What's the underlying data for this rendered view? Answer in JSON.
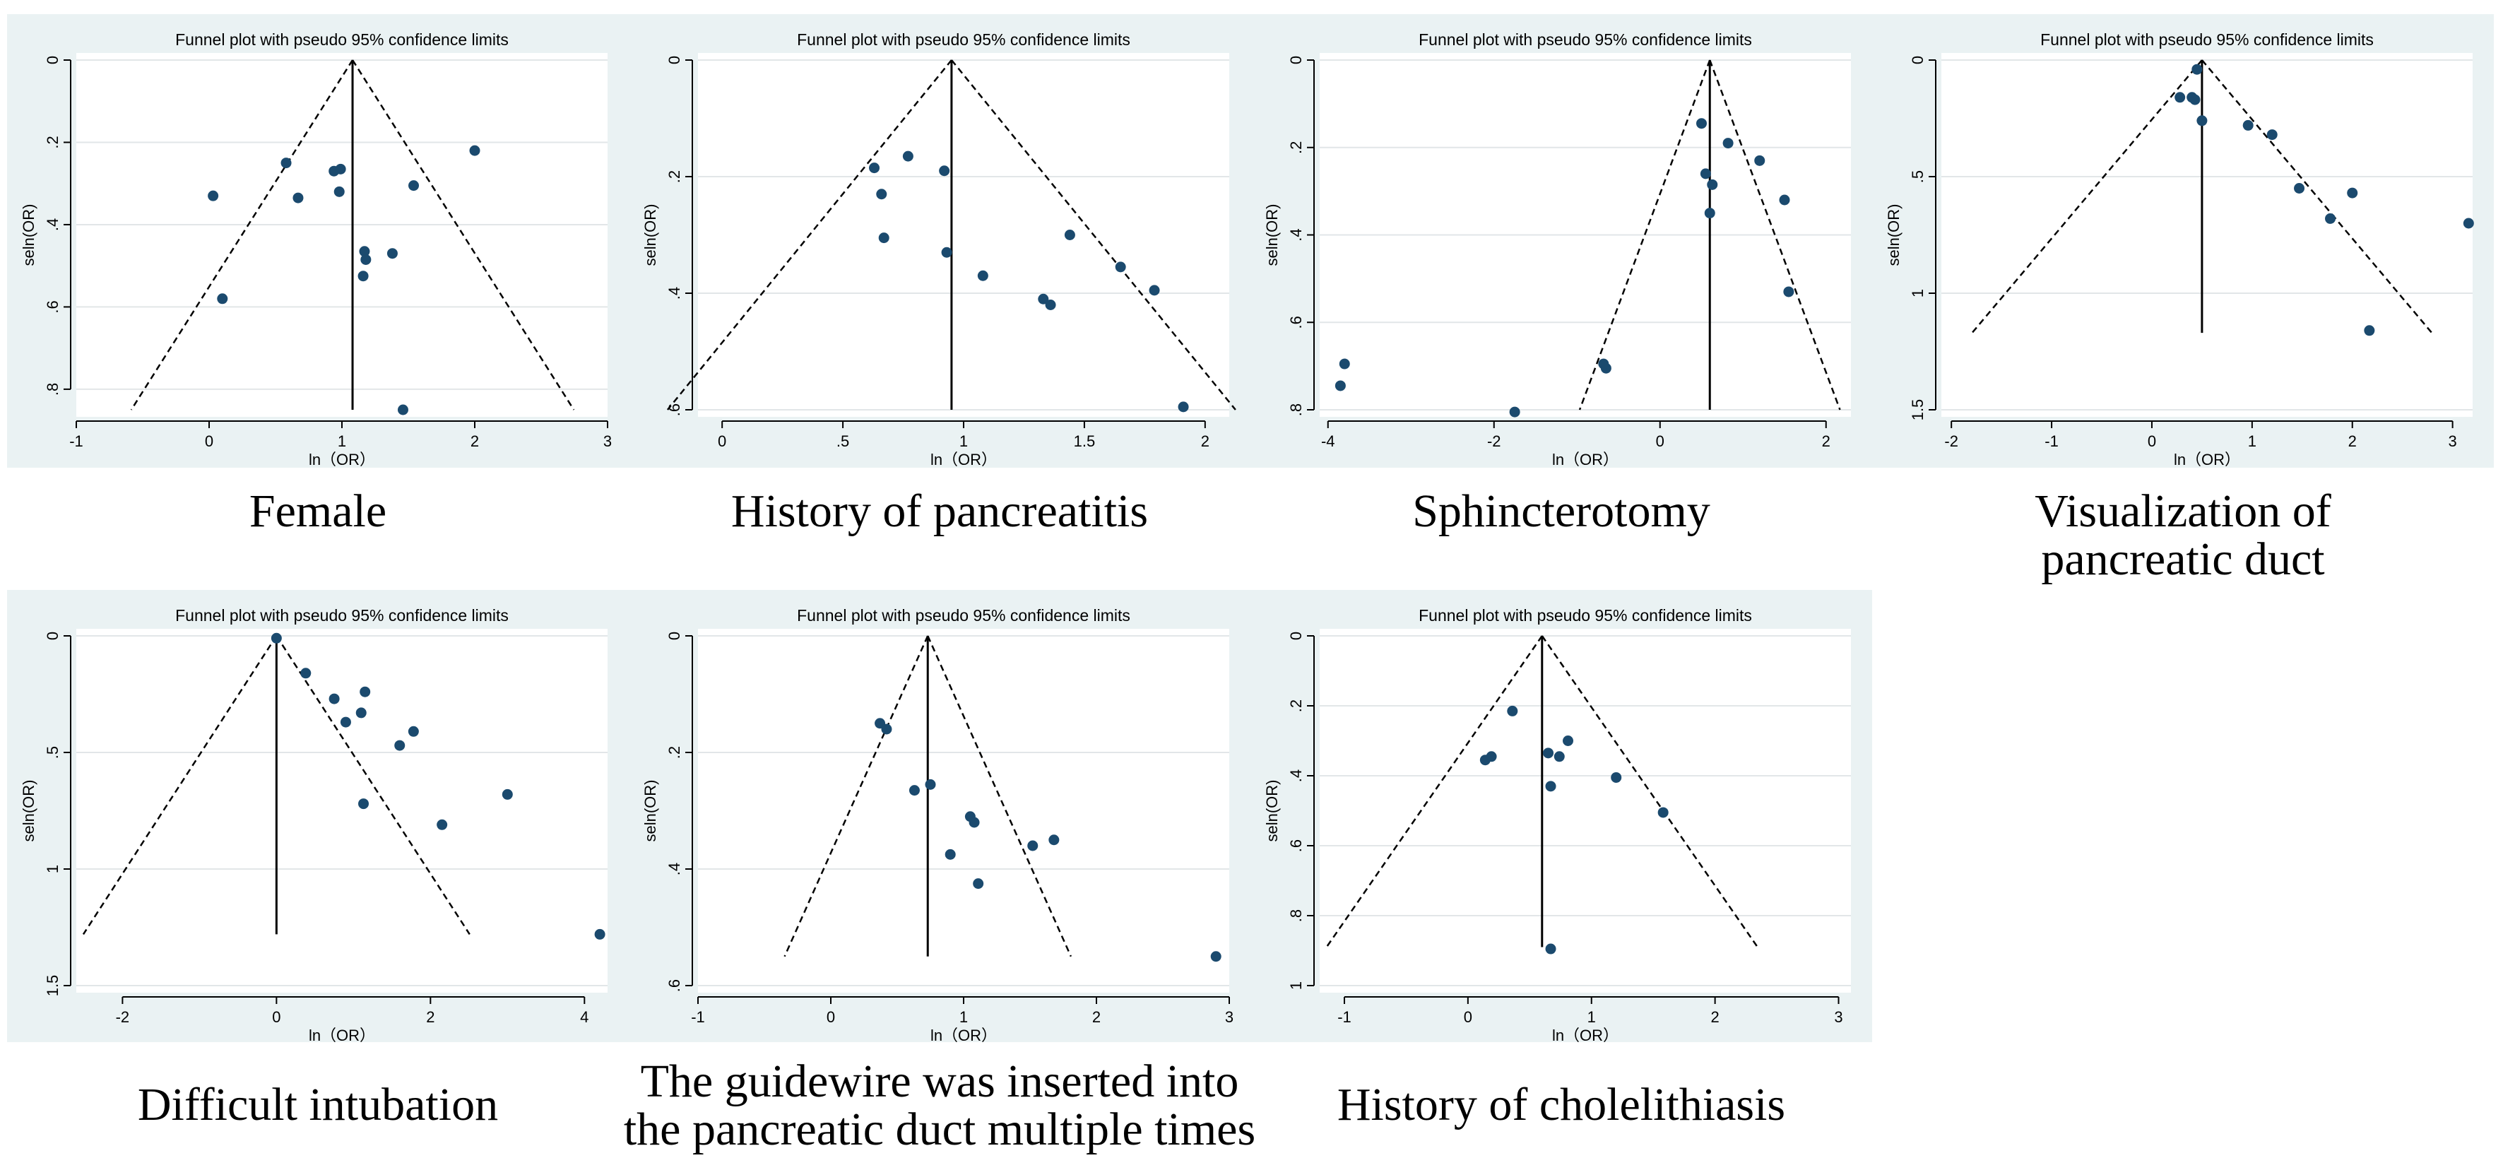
{
  "chart_data": [
    {
      "type": "scatter",
      "title": "Funnel plot with pseudo 95% confidence limits",
      "xlabel": "ln（OR）",
      "ylabel": "seln(OR)",
      "caption": [
        "Female"
      ],
      "xlim": [
        -1,
        3
      ],
      "ylim": [
        0,
        0.85
      ],
      "y_reversed": true,
      "xticks": [
        -1,
        0,
        1,
        2,
        3
      ],
      "xtick_labels": [
        "-1",
        "0",
        "1",
        "2",
        "3"
      ],
      "yticks": [
        0,
        0.2,
        0.4,
        0.6,
        0.8
      ],
      "ytick_labels": [
        "0",
        ".2",
        ".4",
        ".6",
        ".8"
      ],
      "pooled": 1.08,
      "funnel_ymax": 0.85,
      "grid": true,
      "points": [
        {
          "x": 0.03,
          "y": 0.33
        },
        {
          "x": 0.1,
          "y": 0.58
        },
        {
          "x": 0.58,
          "y": 0.25
        },
        {
          "x": 0.67,
          "y": 0.335
        },
        {
          "x": 0.94,
          "y": 0.27
        },
        {
          "x": 0.99,
          "y": 0.265
        },
        {
          "x": 0.98,
          "y": 0.32
        },
        {
          "x": 1.17,
          "y": 0.465
        },
        {
          "x": 1.18,
          "y": 0.485
        },
        {
          "x": 1.16,
          "y": 0.525
        },
        {
          "x": 1.38,
          "y": 0.47
        },
        {
          "x": 1.54,
          "y": 0.305
        },
        {
          "x": 1.46,
          "y": 0.85
        },
        {
          "x": 2.0,
          "y": 0.22
        }
      ]
    },
    {
      "type": "scatter",
      "title": "Funnel plot with pseudo 95% confidence limits",
      "xlabel": "ln（OR）",
      "ylabel": "seln(OR)",
      "caption": [
        "History of pancreatitis"
      ],
      "xlim": [
        -0.1,
        2.1
      ],
      "ylim": [
        0,
        0.6
      ],
      "y_reversed": true,
      "xticks": [
        0,
        0.5,
        1,
        1.5,
        2
      ],
      "xtick_labels": [
        "0",
        ".5",
        "1",
        "1.5",
        "2"
      ],
      "yticks": [
        0,
        0.2,
        0.4,
        0.6
      ],
      "ytick_labels": [
        "0",
        ".2",
        ".4",
        ".6"
      ],
      "pooled": 0.95,
      "funnel_ymax": 0.6,
      "grid": true,
      "points": [
        {
          "x": 0.63,
          "y": 0.185
        },
        {
          "x": 0.66,
          "y": 0.23
        },
        {
          "x": 0.67,
          "y": 0.305
        },
        {
          "x": 0.77,
          "y": 0.165
        },
        {
          "x": 0.92,
          "y": 0.19
        },
        {
          "x": 0.93,
          "y": 0.33
        },
        {
          "x": 1.08,
          "y": 0.37
        },
        {
          "x": 1.33,
          "y": 0.41
        },
        {
          "x": 1.36,
          "y": 0.42
        },
        {
          "x": 1.44,
          "y": 0.3
        },
        {
          "x": 1.65,
          "y": 0.355
        },
        {
          "x": 1.79,
          "y": 0.395
        },
        {
          "x": 1.91,
          "y": 0.595
        }
      ]
    },
    {
      "type": "scatter",
      "title": "Funnel plot with pseudo 95% confidence limits",
      "xlabel": "ln（OR）",
      "ylabel": "seln(OR)",
      "caption": [
        "Sphincterotomy"
      ],
      "xlim": [
        -4.1,
        2.3
      ],
      "ylim": [
        0,
        0.8
      ],
      "y_reversed": true,
      "xticks": [
        -4,
        -2,
        0,
        2
      ],
      "xtick_labels": [
        "-4",
        "-2",
        "0",
        "2"
      ],
      "yticks": [
        0,
        0.2,
        0.4,
        0.6,
        0.8
      ],
      "ytick_labels": [
        "0",
        ".2",
        ".4",
        ".6",
        ".8"
      ],
      "pooled": 0.6,
      "funnel_ymax": 0.8,
      "grid": true,
      "points": [
        {
          "x": -3.85,
          "y": 0.745
        },
        {
          "x": -3.8,
          "y": 0.695
        },
        {
          "x": -1.75,
          "y": 0.805
        },
        {
          "x": -0.65,
          "y": 0.705
        },
        {
          "x": -0.68,
          "y": 0.695
        },
        {
          "x": 0.5,
          "y": 0.145
        },
        {
          "x": 0.55,
          "y": 0.26
        },
        {
          "x": 0.63,
          "y": 0.285
        },
        {
          "x": 0.6,
          "y": 0.35
        },
        {
          "x": 0.82,
          "y": 0.19
        },
        {
          "x": 1.2,
          "y": 0.23
        },
        {
          "x": 1.5,
          "y": 0.32
        },
        {
          "x": 1.55,
          "y": 0.53
        }
      ]
    },
    {
      "type": "scatter",
      "title": "Funnel plot with pseudo 95% confidence limits",
      "xlabel": "ln（OR）",
      "ylabel": "seln(OR)",
      "caption": [
        "Visualization of",
        "pancreatic duct"
      ],
      "xlim": [
        -2.1,
        3.2
      ],
      "ylim": [
        0,
        1.5
      ],
      "y_reversed": true,
      "xticks": [
        -2,
        -1,
        0,
        1,
        2,
        3
      ],
      "xtick_labels": [
        "-2",
        "-1",
        "0",
        "1",
        "2",
        "3"
      ],
      "yticks": [
        0,
        0.5,
        1,
        1.5
      ],
      "ytick_labels": [
        "0",
        ".5",
        "1",
        "1.5"
      ],
      "pooled": 0.5,
      "funnel_ymax": 1.17,
      "grid": true,
      "points": [
        {
          "x": 0.28,
          "y": 0.16
        },
        {
          "x": 0.4,
          "y": 0.16
        },
        {
          "x": 0.43,
          "y": 0.17
        },
        {
          "x": 0.45,
          "y": 0.04
        },
        {
          "x": 0.5,
          "y": 0.26
        },
        {
          "x": 0.96,
          "y": 0.28
        },
        {
          "x": 1.2,
          "y": 0.32
        },
        {
          "x": 1.47,
          "y": 0.55
        },
        {
          "x": 1.78,
          "y": 0.68
        },
        {
          "x": 2.0,
          "y": 0.57
        },
        {
          "x": 2.17,
          "y": 1.16
        },
        {
          "x": 3.16,
          "y": 0.7
        }
      ]
    },
    {
      "type": "scatter",
      "title": "Funnel plot with pseudo 95% confidence limits",
      "xlabel": "ln（OR）",
      "ylabel": "seln(OR)",
      "caption": [
        "Difficult intubation"
      ],
      "xlim": [
        -2.6,
        4.3
      ],
      "ylim": [
        0,
        1.5
      ],
      "y_reversed": true,
      "xticks": [
        -2,
        0,
        2,
        4
      ],
      "xtick_labels": [
        "-2",
        "0",
        "2",
        "4"
      ],
      "yticks": [
        0,
        0.5,
        1,
        1.5
      ],
      "ytick_labels": [
        "0",
        ".5",
        "1",
        "1.5"
      ],
      "pooled": 0.0,
      "funnel_ymax": 1.28,
      "grid": true,
      "points": [
        {
          "x": 0.0,
          "y": 0.01
        },
        {
          "x": 0.38,
          "y": 0.16
        },
        {
          "x": 0.75,
          "y": 0.27
        },
        {
          "x": 0.9,
          "y": 0.37
        },
        {
          "x": 1.1,
          "y": 0.33
        },
        {
          "x": 1.15,
          "y": 0.24
        },
        {
          "x": 1.13,
          "y": 0.72
        },
        {
          "x": 1.6,
          "y": 0.47
        },
        {
          "x": 1.78,
          "y": 0.41
        },
        {
          "x": 2.15,
          "y": 0.81
        },
        {
          "x": 3.0,
          "y": 0.68
        },
        {
          "x": 4.2,
          "y": 1.28
        }
      ]
    },
    {
      "type": "scatter",
      "title": "Funnel plot with pseudo 95% confidence limits",
      "xlabel": "ln（OR）",
      "ylabel": "seln(OR)",
      "caption": [
        "The guidewire was inserted into",
        "the pancreatic duct multiple times"
      ],
      "xlim": [
        -1,
        3
      ],
      "ylim": [
        0,
        0.6
      ],
      "y_reversed": true,
      "xticks": [
        -1,
        0,
        1,
        2,
        3
      ],
      "xtick_labels": [
        "-1",
        "0",
        "1",
        "2",
        "3"
      ],
      "yticks": [
        0,
        0.2,
        0.4,
        0.6
      ],
      "ytick_labels": [
        "0",
        ".2",
        ".4",
        ".6"
      ],
      "pooled": 0.73,
      "funnel_ymax": 0.55,
      "grid": true,
      "points": [
        {
          "x": 0.37,
          "y": 0.15
        },
        {
          "x": 0.42,
          "y": 0.16
        },
        {
          "x": 0.63,
          "y": 0.265
        },
        {
          "x": 0.75,
          "y": 0.255
        },
        {
          "x": 0.9,
          "y": 0.375
        },
        {
          "x": 1.05,
          "y": 0.31
        },
        {
          "x": 1.08,
          "y": 0.32
        },
        {
          "x": 1.11,
          "y": 0.425
        },
        {
          "x": 1.52,
          "y": 0.36
        },
        {
          "x": 1.68,
          "y": 0.35
        },
        {
          "x": 2.9,
          "y": 0.55
        }
      ]
    },
    {
      "type": "scatter",
      "title": "Funnel plot with pseudo 95% confidence limits",
      "xlabel": "ln（OR）",
      "ylabel": "seln(OR)",
      "caption": [
        "History of cholelithiasis"
      ],
      "xlim": [
        -1.2,
        3.1
      ],
      "ylim": [
        0,
        1.0
      ],
      "y_reversed": true,
      "xticks": [
        -1,
        0,
        1,
        2,
        3
      ],
      "xtick_labels": [
        "-1",
        "0",
        "1",
        "2",
        "3"
      ],
      "yticks": [
        0,
        0.2,
        0.4,
        0.6,
        0.8,
        1
      ],
      "ytick_labels": [
        "0",
        ".2",
        ".4",
        ".6",
        ".8",
        "1"
      ],
      "pooled": 0.6,
      "funnel_ymax": 0.89,
      "grid": true,
      "points": [
        {
          "x": 0.14,
          "y": 0.355
        },
        {
          "x": 0.19,
          "y": 0.345
        },
        {
          "x": 0.36,
          "y": 0.215
        },
        {
          "x": 0.65,
          "y": 0.335
        },
        {
          "x": 0.67,
          "y": 0.43
        },
        {
          "x": 0.74,
          "y": 0.345
        },
        {
          "x": 0.81,
          "y": 0.3
        },
        {
          "x": 1.2,
          "y": 0.405
        },
        {
          "x": 1.58,
          "y": 0.505
        },
        {
          "x": 0.67,
          "y": 0.895
        }
      ]
    }
  ]
}
